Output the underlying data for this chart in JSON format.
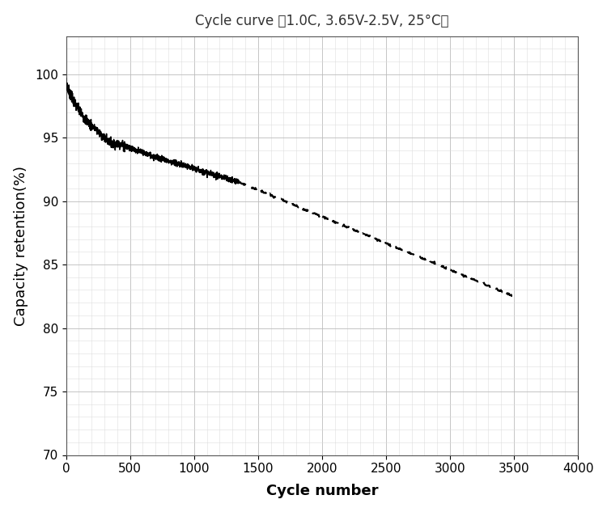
{
  "title": "Cycle curve （1.0C, 3.65V-2.5V, 25°C）",
  "xlabel": "Cycle number",
  "ylabel": "Capacity retention(%)",
  "xlim": [
    0,
    4000
  ],
  "ylim": [
    70,
    103
  ],
  "xticks": [
    0,
    500,
    1000,
    1500,
    2000,
    2500,
    3000,
    3500,
    4000
  ],
  "yticks": [
    70,
    75,
    80,
    85,
    90,
    95,
    100
  ],
  "solid_end_cycle": 1350,
  "curve_start_y": 99.3,
  "curve_solid_end_y": 91.5,
  "curve_dashed_end_x": 3500,
  "curve_dashed_end_y": 82.5,
  "line_color": "#000000",
  "grid_major_color": "#bbbbbb",
  "grid_minor_color": "#dddddd",
  "background_color": "#ffffff",
  "title_fontsize": 12,
  "label_fontsize": 13,
  "tick_fontsize": 11
}
